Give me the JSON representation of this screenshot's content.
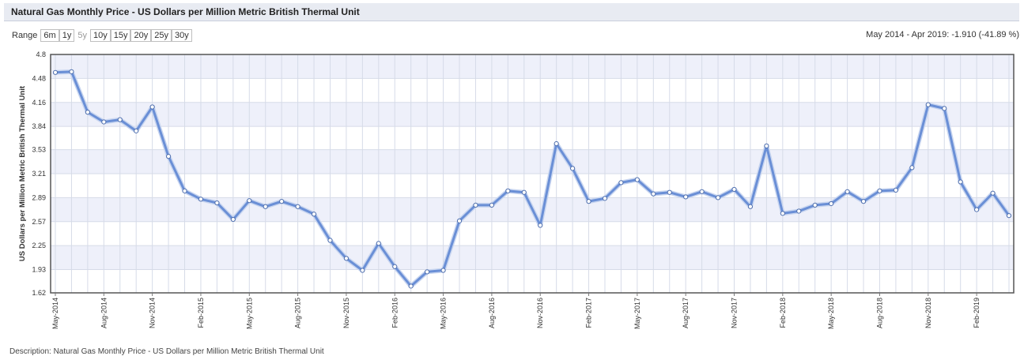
{
  "header": {
    "title": "Natural Gas Monthly Price - US Dollars per Million Metric British Thermal Unit"
  },
  "range": {
    "label": "Range",
    "buttons": [
      "6m",
      "1y",
      "5y",
      "10y",
      "15y",
      "20y",
      "25y",
      "30y"
    ],
    "selected": "5y"
  },
  "summary": "May 2014 - Apr 2019: -1.910 (-41.89 %)",
  "colors": {
    "line": "#6a8fd6",
    "band": "#eef0fa",
    "grid": "#d6dbe8",
    "border": "#555555"
  },
  "chart_data": {
    "type": "line",
    "ylabel": "US Dollars per Million Metric British Thermal Unit",
    "ylim": [
      1.62,
      4.8
    ],
    "yticks": [
      "1.62",
      "1.93",
      "2.25",
      "2.57",
      "2.89",
      "3.21",
      "3.53",
      "3.84",
      "4.16",
      "4.48",
      "4.8"
    ],
    "xticks": [
      {
        "label": "May-2014",
        "index": 0
      },
      {
        "label": "Aug-2014",
        "index": 3
      },
      {
        "label": "Nov-2014",
        "index": 6
      },
      {
        "label": "Feb-2015",
        "index": 9
      },
      {
        "label": "May-2015",
        "index": 12
      },
      {
        "label": "Aug-2015",
        "index": 15
      },
      {
        "label": "Nov-2015",
        "index": 18
      },
      {
        "label": "Feb-2016",
        "index": 21
      },
      {
        "label": "May-2016",
        "index": 24
      },
      {
        "label": "Aug-2016",
        "index": 27
      },
      {
        "label": "Nov-2016",
        "index": 30
      },
      {
        "label": "Feb-2017",
        "index": 33
      },
      {
        "label": "May-2017",
        "index": 36
      },
      {
        "label": "Aug-2017",
        "index": 39
      },
      {
        "label": "Nov-2017",
        "index": 42
      },
      {
        "label": "Feb-2018",
        "index": 45
      },
      {
        "label": "May-2018",
        "index": 48
      },
      {
        "label": "Aug-2018",
        "index": 51
      },
      {
        "label": "Nov-2018",
        "index": 54
      },
      {
        "label": "Feb-2019",
        "index": 57
      }
    ],
    "x": [
      "May-2014",
      "Jun-2014",
      "Jul-2014",
      "Aug-2014",
      "Sep-2014",
      "Oct-2014",
      "Nov-2014",
      "Dec-2014",
      "Jan-2015",
      "Feb-2015",
      "Mar-2015",
      "Apr-2015",
      "May-2015",
      "Jun-2015",
      "Jul-2015",
      "Aug-2015",
      "Sep-2015",
      "Oct-2015",
      "Nov-2015",
      "Dec-2015",
      "Jan-2016",
      "Feb-2016",
      "Mar-2016",
      "Apr-2016",
      "May-2016",
      "Jun-2016",
      "Jul-2016",
      "Aug-2016",
      "Sep-2016",
      "Oct-2016",
      "Nov-2016",
      "Dec-2016",
      "Jan-2017",
      "Feb-2017",
      "Mar-2017",
      "Apr-2017",
      "May-2017",
      "Jun-2017",
      "Jul-2017",
      "Aug-2017",
      "Sep-2017",
      "Oct-2017",
      "Nov-2017",
      "Dec-2017",
      "Jan-2018",
      "Feb-2018",
      "Mar-2018",
      "Apr-2018",
      "May-2018",
      "Jun-2018",
      "Jul-2018",
      "Aug-2018",
      "Sep-2018",
      "Oct-2018",
      "Nov-2018",
      "Dec-2018",
      "Jan-2019",
      "Feb-2019",
      "Mar-2019",
      "Apr-2019"
    ],
    "values": [
      4.56,
      4.57,
      4.03,
      3.9,
      3.93,
      3.78,
      4.1,
      3.44,
      2.98,
      2.87,
      2.82,
      2.6,
      2.85,
      2.77,
      2.84,
      2.77,
      2.67,
      2.32,
      2.08,
      1.92,
      2.28,
      1.97,
      1.71,
      1.9,
      1.92,
      2.58,
      2.79,
      2.79,
      2.98,
      2.96,
      2.52,
      3.61,
      3.28,
      2.84,
      2.88,
      3.09,
      3.13,
      2.94,
      2.96,
      2.9,
      2.97,
      2.89,
      3.0,
      2.77,
      3.58,
      2.68,
      2.71,
      2.79,
      2.81,
      2.97,
      2.84,
      2.98,
      2.99,
      3.29,
      4.13,
      4.08,
      3.1,
      2.73,
      2.95,
      2.65
    ]
  },
  "footer": {
    "caption": "Description: Natural Gas Monthly Price - US Dollars per Million Metric British Thermal Unit"
  }
}
